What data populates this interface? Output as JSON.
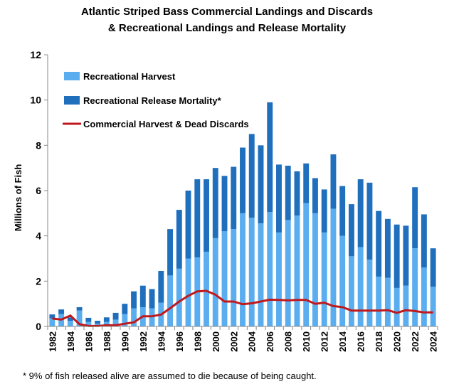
{
  "title_line1": "Atlantic Striped Bass Commercial Landings and Discards",
  "title_line2": "& Recreational Landings and Release Mortality",
  "footnote": "* 9% of fish released alive are assumed to die because of being caught.",
  "chart_data": {
    "type": "bar",
    "stacked": true,
    "title": "Atlantic Striped Bass Commercial Landings and Discards & Recreational Landings and Release Mortality",
    "xlabel": "",
    "ylabel": "Millions of Fish",
    "ylim": [
      0,
      12
    ],
    "yticks": [
      0,
      2,
      4,
      6,
      8,
      10,
      12
    ],
    "grid": false,
    "legend_position": "top-left",
    "categories": [
      "1982",
      "1983",
      "1984",
      "1985",
      "1986",
      "1987",
      "1988",
      "1989",
      "1990",
      "1991",
      "1992",
      "1993",
      "1994",
      "1995",
      "1996",
      "1997",
      "1998",
      "1999",
      "2000",
      "2001",
      "2002",
      "2003",
      "2004",
      "2005",
      "2006",
      "2007",
      "2008",
      "2009",
      "2010",
      "2011",
      "2012",
      "2013",
      "2014",
      "2015",
      "2016",
      "2017",
      "2018",
      "2019",
      "2020",
      "2021",
      "2022",
      "2023",
      "2024"
    ],
    "x_tick_labels": [
      "1982",
      "1984",
      "1986",
      "1988",
      "1990",
      "1992",
      "1994",
      "1996",
      "1998",
      "2000",
      "2002",
      "2004",
      "2006",
      "2008",
      "2010",
      "2012",
      "2014",
      "2016",
      "2018",
      "2020",
      "2022",
      "2024"
    ],
    "series": [
      {
        "name": "Recreational Harvest",
        "kind": "bar",
        "color": "#5aaef0",
        "values": [
          0.35,
          0.55,
          0.25,
          0.7,
          0.2,
          0.12,
          0.2,
          0.3,
          0.55,
          0.8,
          0.85,
          0.8,
          1.05,
          2.25,
          2.55,
          3.0,
          3.05,
          3.3,
          3.9,
          4.2,
          4.3,
          5.0,
          4.8,
          4.55,
          5.05,
          4.15,
          4.7,
          4.9,
          5.45,
          5.0,
          4.15,
          5.2,
          4.0,
          3.1,
          3.5,
          2.95,
          2.2,
          2.15,
          1.7,
          1.8,
          3.45,
          2.6,
          1.75
        ]
      },
      {
        "name": "Recreational Release Mortality*",
        "kind": "bar",
        "color": "#1f6fbd",
        "values": [
          0.18,
          0.2,
          0.15,
          0.15,
          0.18,
          0.13,
          0.2,
          0.3,
          0.45,
          0.75,
          0.95,
          0.85,
          1.4,
          2.05,
          2.6,
          3.0,
          3.45,
          3.2,
          3.1,
          2.45,
          2.75,
          2.9,
          3.7,
          3.45,
          4.85,
          3.0,
          2.4,
          1.95,
          1.75,
          1.55,
          1.9,
          2.4,
          2.2,
          2.3,
          3.0,
          3.4,
          2.9,
          2.6,
          2.8,
          2.65,
          2.7,
          2.35,
          1.7
        ]
      },
      {
        "name": "Commercial Harvest & Dead Discards",
        "kind": "line",
        "color": "#c0191c",
        "values": [
          0.35,
          0.3,
          0.48,
          0.1,
          0.02,
          0.02,
          0.05,
          0.05,
          0.12,
          0.18,
          0.45,
          0.45,
          0.52,
          0.8,
          1.1,
          1.35,
          1.55,
          1.57,
          1.4,
          1.1,
          1.1,
          0.98,
          1.02,
          1.1,
          1.18,
          1.17,
          1.15,
          1.17,
          1.17,
          1.0,
          1.05,
          0.9,
          0.85,
          0.7,
          0.7,
          0.7,
          0.7,
          0.72,
          0.6,
          0.72,
          0.68,
          0.62,
          0.62
        ]
      }
    ]
  }
}
